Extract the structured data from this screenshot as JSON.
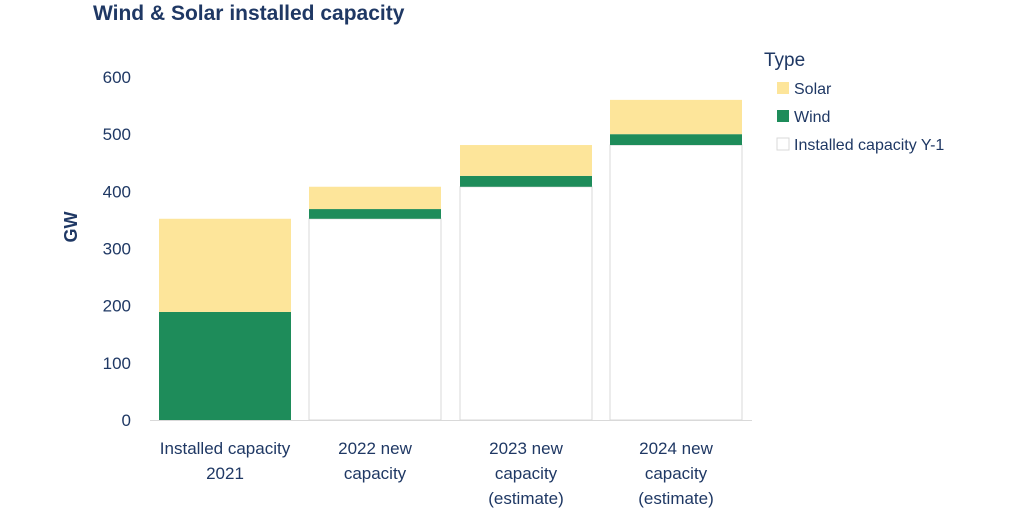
{
  "chart_data": {
    "type": "bar",
    "stacked": true,
    "title": "Wind & Solar installed capacity",
    "ylabel": "GW",
    "ylim": [
      0,
      600
    ],
    "yticks": [
      "0",
      "100",
      "200",
      "300",
      "400",
      "500",
      "600"
    ],
    "categories": [
      [
        "Installed capacity",
        "2021"
      ],
      [
        "2022 new",
        "capacity"
      ],
      [
        "2023 new",
        "capacity",
        "(estimate)"
      ],
      [
        "2024 new",
        "capacity",
        "(estimate)"
      ]
    ],
    "legend_title": "Type",
    "legend_position": "right",
    "series": [
      {
        "name": "Installed capacity Y-1",
        "values": [
          0,
          352,
          408,
          481
        ],
        "color": "#ffffff",
        "stroke": "#d9d9d9"
      },
      {
        "name": "Wind",
        "values": [
          189,
          17,
          19,
          19
        ],
        "color": "#1e8c5a"
      },
      {
        "name": "Solar",
        "values": [
          163,
          39,
          54,
          60
        ],
        "color": "#fde59a"
      }
    ],
    "legend_order": [
      "Solar",
      "Wind",
      "Installed capacity Y-1"
    ],
    "grid": false
  }
}
